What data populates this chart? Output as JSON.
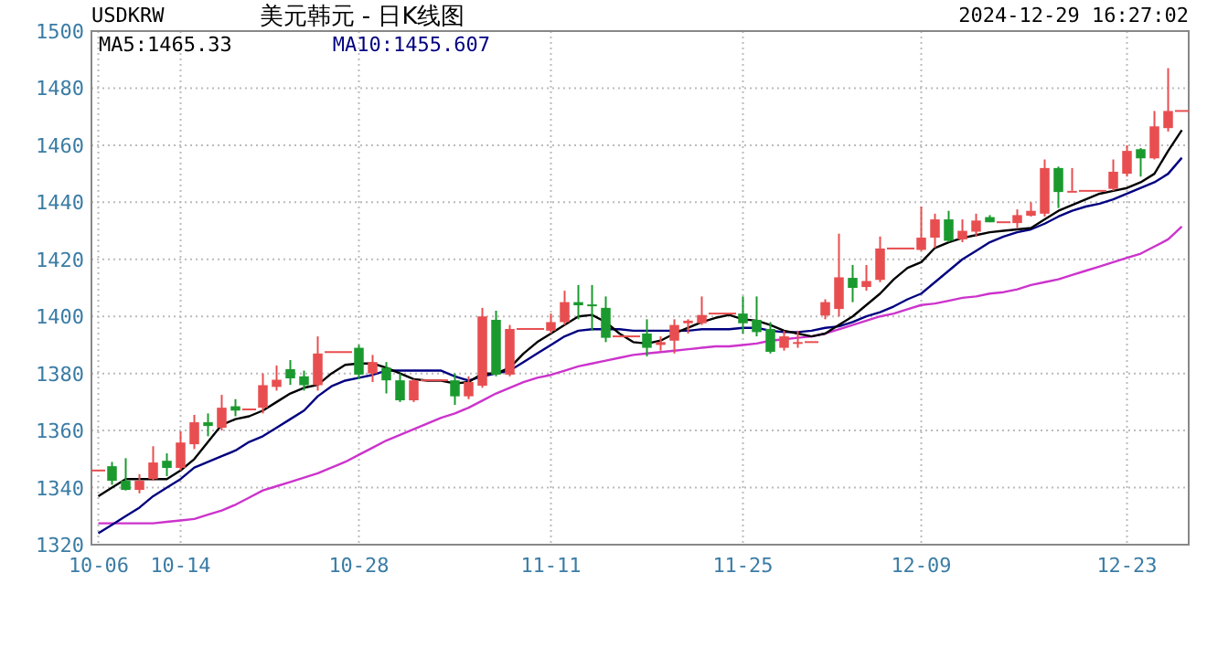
{
  "chart_data": {
    "type": "candlestick",
    "title": "美元韩元 - 日K线图",
    "subtitle": "USDKRW",
    "annotations": [
      "2024-12-29 16:27:02"
    ],
    "categories": [
      "10-06",
      null,
      null,
      null,
      null,
      null,
      "10-14",
      null,
      null,
      null,
      null,
      null,
      null,
      null,
      null,
      null,
      null,
      null,
      null,
      "10-28",
      null,
      null,
      null,
      null,
      null,
      null,
      null,
      null,
      null,
      null,
      null,
      null,
      null,
      "11-11",
      null,
      null,
      null,
      null,
      null,
      null,
      null,
      null,
      null,
      null,
      null,
      null,
      null,
      "11-25",
      null,
      null,
      null,
      null,
      null,
      null,
      null,
      null,
      null,
      null,
      null,
      null,
      "12-09",
      null,
      null,
      null,
      null,
      null,
      null,
      null,
      null,
      null,
      null,
      null,
      null,
      null,
      null,
      "12-23",
      null,
      null,
      null,
      null
    ],
    "ohlc": [
      [
        1346,
        1346,
        1346,
        1346
      ],
      [
        1347.5,
        1349,
        1341,
        1342.4
      ],
      [
        1342.4,
        1350.3,
        1339,
        1339.2
      ],
      [
        1339.2,
        1344.7,
        1338,
        1342.4
      ],
      [
        1343,
        1354.5,
        1342.4,
        1348.8
      ],
      [
        1349.4,
        1352,
        1344,
        1346.9
      ],
      [
        1346.9,
        1359.7,
        1346,
        1355.8
      ],
      [
        1355.2,
        1365.5,
        1353.5,
        1362.9
      ],
      [
        1362.9,
        1366,
        1358,
        1361.6
      ],
      [
        1361,
        1372.5,
        1360,
        1368
      ],
      [
        1368.5,
        1371,
        1365,
        1367
      ],
      [
        1367.4,
        1367.4,
        1367.4,
        1367.4
      ],
      [
        1368,
        1380,
        1366,
        1375.9
      ],
      [
        1375.3,
        1382.8,
        1374,
        1377.8
      ],
      [
        1381.5,
        1384.7,
        1376,
        1378.3
      ],
      [
        1379,
        1381,
        1374,
        1375.9
      ],
      [
        1375.9,
        1393,
        1374,
        1387
      ],
      [
        1387.5,
        1387.5,
        1387.5,
        1387.5
      ],
      [
        1387.5,
        1387.5,
        1387.5,
        1387.5
      ],
      [
        1389,
        1390,
        1378,
        1379.6
      ],
      [
        1380,
        1386.5,
        1377,
        1384
      ],
      [
        1382,
        1384,
        1373,
        1377.6
      ],
      [
        1377.6,
        1380,
        1370,
        1370.6
      ],
      [
        1370.6,
        1378,
        1370,
        1377.6
      ],
      [
        1377.6,
        1377.6,
        1377.6,
        1377.6
      ],
      [
        1377.6,
        1377.6,
        1377.6,
        1377.6
      ],
      [
        1377.6,
        1380,
        1369,
        1372
      ],
      [
        1372,
        1379,
        1371,
        1377
      ],
      [
        1375.7,
        1403,
        1375,
        1400
      ],
      [
        1398.8,
        1402,
        1379,
        1379.6
      ],
      [
        1379.6,
        1397,
        1379,
        1395.6
      ],
      [
        1395.6,
        1395.6,
        1395.6,
        1395.6
      ],
      [
        1395.6,
        1395.6,
        1395.6,
        1395.6
      ],
      [
        1395,
        1401,
        1394,
        1398
      ],
      [
        1398,
        1409,
        1397,
        1405
      ],
      [
        1405,
        1411,
        1399,
        1403.9
      ],
      [
        1404.2,
        1411,
        1395,
        1404
      ],
      [
        1403,
        1407,
        1391,
        1392.5
      ],
      [
        1393,
        1393,
        1393,
        1393
      ],
      [
        1393,
        1393,
        1393,
        1393
      ],
      [
        1394,
        1399,
        1386,
        1389
      ],
      [
        1390,
        1393,
        1388,
        1391
      ],
      [
        1391.5,
        1399,
        1387,
        1397
      ],
      [
        1397.6,
        1399,
        1394,
        1398.5
      ],
      [
        1397.6,
        1407,
        1397,
        1400.5
      ],
      [
        1401,
        1401,
        1401,
        1401
      ],
      [
        1401,
        1401,
        1401,
        1401
      ],
      [
        1401,
        1407,
        1394,
        1397.6
      ],
      [
        1398.8,
        1407,
        1393,
        1394.5
      ],
      [
        1395.6,
        1398,
        1387,
        1387.6
      ],
      [
        1389,
        1395,
        1388,
        1393
      ],
      [
        1391,
        1395,
        1389,
        1391
      ],
      [
        1391,
        1391,
        1391,
        1391
      ],
      [
        1400.3,
        1406,
        1399,
        1405
      ],
      [
        1402.6,
        1429,
        1400,
        1413.7
      ],
      [
        1413.5,
        1418,
        1405,
        1410
      ],
      [
        1410.3,
        1418,
        1409,
        1412.4
      ],
      [
        1412.8,
        1428,
        1412,
        1423.8
      ],
      [
        1423.8,
        1423.8,
        1423.8,
        1423.8
      ],
      [
        1423.8,
        1423.8,
        1423.8,
        1423.8
      ],
      [
        1423.3,
        1438.5,
        1423,
        1427.6
      ],
      [
        1427.6,
        1436,
        1424,
        1434
      ],
      [
        1434,
        1437,
        1426,
        1426.5
      ],
      [
        1427,
        1434,
        1426,
        1430
      ],
      [
        1429.7,
        1436,
        1428,
        1433.6
      ],
      [
        1434.8,
        1435.5,
        1433,
        1433
      ],
      [
        1433,
        1433,
        1433,
        1433
      ],
      [
        1432.7,
        1437.5,
        1431,
        1435.5
      ],
      [
        1435.3,
        1440,
        1435,
        1437
      ],
      [
        1436,
        1455,
        1435,
        1452
      ],
      [
        1452,
        1452.5,
        1438,
        1443.6
      ],
      [
        1444,
        1452,
        1444,
        1444
      ],
      [
        1444,
        1444,
        1444,
        1444
      ],
      [
        1444,
        1444,
        1444,
        1444
      ],
      [
        1444.7,
        1455,
        1444,
        1450.7
      ],
      [
        1450,
        1460,
        1449,
        1458
      ],
      [
        1458.6,
        1459,
        1449,
        1455.4
      ],
      [
        1455.4,
        1472,
        1455,
        1466.6
      ],
      [
        1466,
        1487,
        1464.8,
        1472
      ],
      [
        1472,
        1472,
        1472,
        1472
      ]
    ],
    "colors": [
      "#e84e50",
      "#1a9a2e",
      "#1a9a2e",
      "#e84e50",
      "#e84e50",
      "#1a9a2e",
      "#e84e50",
      "#e84e50",
      "#1a9a2e",
      "#e84e50",
      "#1a9a2e",
      "#e84e50",
      "#e84e50",
      "#e84e50",
      "#1a9a2e",
      "#1a9a2e",
      "#e84e50",
      "#e84e50",
      "#e84e50",
      "#1a9a2e",
      "#e84e50",
      "#1a9a2e",
      "#1a9a2e",
      "#e84e50",
      "#e84e50",
      "#e84e50",
      "#1a9a2e",
      "#e84e50",
      "#e84e50",
      "#1a9a2e",
      "#e84e50",
      "#e84e50",
      "#e84e50",
      "#e84e50",
      "#e84e50",
      "#1a9a2e",
      "#1a9a2e",
      "#1a9a2e",
      "#e84e50",
      "#e84e50",
      "#1a9a2e",
      "#e84e50",
      "#e84e50",
      "#e84e50",
      "#e84e50",
      "#e84e50",
      "#e84e50",
      "#1a9a2e",
      "#1a9a2e",
      "#1a9a2e",
      "#e84e50",
      "#e84e50",
      "#e84e50",
      "#e84e50",
      "#e84e50",
      "#1a9a2e",
      "#e84e50",
      "#e84e50",
      "#e84e50",
      "#e84e50",
      "#e84e50",
      "#e84e50",
      "#1a9a2e",
      "#e84e50",
      "#e84e50",
      "#1a9a2e",
      "#e84e50",
      "#e84e50",
      "#e84e50",
      "#e84e50",
      "#1a9a2e",
      "#e84e50",
      "#e84e50",
      "#e84e50",
      "#e84e50",
      "#e84e50",
      "#1a9a2e",
      "#e84e50",
      "#e84e50",
      "#e84e50"
    ],
    "series": [
      {
        "type": "line",
        "color": "#cc33cc",
        "values": [
          1327.5,
          1327.5,
          1327.5,
          1327.5,
          1327.5,
          1328,
          1328.5,
          1329,
          1330.5,
          1332,
          1334,
          1336.5,
          1339,
          1340.5,
          1342,
          1343.5,
          1345,
          1347,
          1349,
          1351.5,
          1354,
          1356.5,
          1358.5,
          1360.5,
          1362.5,
          1364.5,
          1366,
          1368,
          1370.5,
          1373,
          1375,
          1377,
          1378.5,
          1379.5,
          1381,
          1382.5,
          1383.5,
          1384.5,
          1385.5,
          1386.5,
          1387,
          1387.5,
          1388,
          1388.5,
          1389,
          1389.5,
          1389.5,
          1390,
          1390.5,
          1391.5,
          1392,
          1392.5,
          1393,
          1394,
          1395.5,
          1397,
          1398.5,
          1400,
          1401,
          1402.5,
          1404,
          1404.5,
          1405.5,
          1406.5,
          1407,
          1408,
          1408.5,
          1409.5,
          1411,
          1412,
          1413,
          1414.5,
          1416,
          1417.5,
          1419,
          1420.5,
          1422,
          1424.5,
          1427,
          1431.5
        ]
      },
      {
        "type": "line",
        "name": "MA10:1455.607",
        "color": "#000080",
        "values": [
          1324,
          1327,
          1330,
          1333,
          1337,
          1340,
          1343,
          1347,
          1349,
          1351,
          1353,
          1356,
          1358,
          1361,
          1364,
          1367,
          1372,
          1375.5,
          1377.5,
          1378.5,
          1379.5,
          1381,
          1381,
          1381,
          1381,
          1381,
          1379,
          1377.5,
          1379,
          1380,
          1381,
          1384,
          1387,
          1390,
          1393,
          1395,
          1395.5,
          1395.5,
          1395.5,
          1395,
          1395,
          1395,
          1395,
          1395,
          1395.5,
          1395.5,
          1395.5,
          1396,
          1396,
          1395,
          1394.5,
          1394.5,
          1395,
          1396,
          1396.5,
          1398,
          1400,
          1401.5,
          1403.5,
          1406,
          1408,
          1412,
          1416,
          1420,
          1423,
          1426,
          1428,
          1429.5,
          1430.5,
          1432.5,
          1435,
          1437,
          1438.5,
          1439.5,
          1441,
          1443,
          1445,
          1447,
          1450,
          1455.6
        ]
      },
      {
        "type": "line",
        "name": "MA5:1465.33",
        "color": "#000000",
        "values": [
          1337,
          1340,
          1343,
          1343,
          1343,
          1343,
          1346,
          1350,
          1356,
          1362,
          1364,
          1365,
          1367,
          1370,
          1373,
          1375,
          1376,
          1380,
          1383,
          1383.5,
          1383.5,
          1382,
          1380,
          1378,
          1377.5,
          1377.5,
          1376.5,
          1377,
          1380,
          1380,
          1382,
          1387,
          1391,
          1394,
          1397,
          1400,
          1400.5,
          1398,
          1394,
          1391,
          1390.5,
          1391.5,
          1394,
          1396,
          1398,
          1399.5,
          1400.5,
          1399,
          1398.5,
          1397,
          1395,
          1394,
          1393,
          1394,
          1397,
          1400,
          1404,
          1408,
          1413,
          1417,
          1419,
          1424,
          1426,
          1427.5,
          1428.5,
          1429.5,
          1430,
          1430.5,
          1431,
          1434,
          1437,
          1439,
          1441,
          1443,
          1444,
          1445,
          1447,
          1450,
          1458,
          1465.3
        ]
      }
    ],
    "ylim": [
      1320,
      1500
    ],
    "yticks": [
      1320,
      1340,
      1360,
      1380,
      1400,
      1420,
      1440,
      1460,
      1480,
      1500
    ],
    "grid": true,
    "legend": "top left"
  }
}
